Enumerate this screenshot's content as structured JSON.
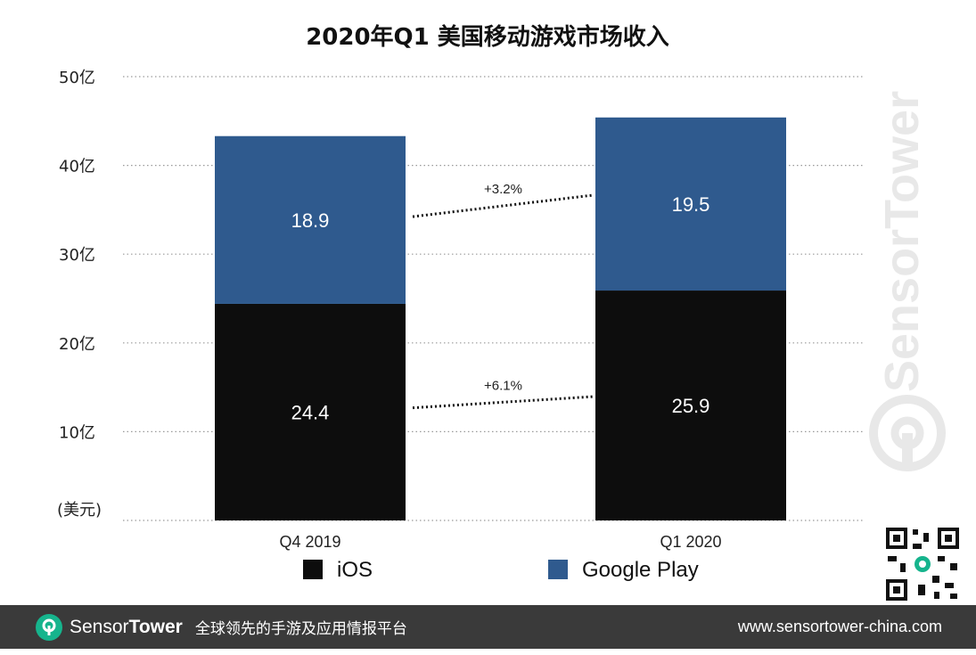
{
  "chart_data": {
    "type": "bar",
    "stacked": true,
    "title": "2020年Q1 美国移动游戏市场收入",
    "unit_label": "(美元)",
    "categories": [
      "Q4  2019",
      "Q1 2020"
    ],
    "y_ticks": [
      "50亿",
      "40亿",
      "30亿",
      "20亿",
      "10亿"
    ],
    "ylim": [
      0,
      50
    ],
    "grid": true,
    "legend_position": "bottom",
    "series": [
      {
        "name": "iOS",
        "values": [
          24.4,
          25.9
        ],
        "labels": [
          "24.4",
          "25.9"
        ],
        "color": "#0d0d0d"
      },
      {
        "name": "Google Play",
        "values": [
          18.9,
          19.5
        ],
        "labels": [
          "18.9",
          "19.5"
        ],
        "color": "#2f5a8e"
      }
    ],
    "growth_annotations": [
      {
        "series": "Google Play",
        "label": "+3.2%"
      },
      {
        "series": "iOS",
        "label": "+6.1%"
      }
    ]
  },
  "watermark": {
    "text": "SensorTower"
  },
  "footer": {
    "brand_part1": "Sensor",
    "brand_part2": "Tower",
    "tagline": "全球领先的手游及应用情报平台",
    "url": "www.sensortower-china.com",
    "brand_color": "#16b48d"
  },
  "icons": {
    "logo": "sensortower-logo-icon",
    "qr": "qr-code-icon"
  }
}
